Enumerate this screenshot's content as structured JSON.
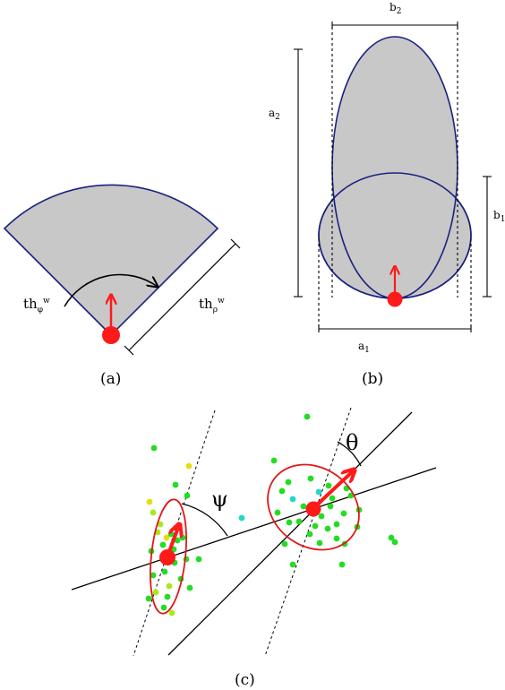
{
  "captions": {
    "a": "(a)",
    "b": "(b)",
    "c": "(c)"
  },
  "panel_a": {
    "angle_label": {
      "base": "th",
      "sub": "φ",
      "sup": "w"
    },
    "range_label": {
      "base": "th",
      "sub": "ρ",
      "sup": "w"
    }
  },
  "panel_b": {
    "b2": {
      "base": "b",
      "sub": "2"
    },
    "a2": {
      "base": "a",
      "sub": "2"
    },
    "b1": {
      "base": "b",
      "sub": "1"
    },
    "a1": {
      "base": "a",
      "sub": "1"
    }
  },
  "panel_c": {
    "psi_label": "ψ",
    "theta_label": "θ"
  },
  "colors": {
    "fill_gray": "#c8c8c8",
    "outline_blue": "#1a237e",
    "marker_red": "#ff1a1a",
    "ellipse_red": "#e01818",
    "point_green": "#22dd22",
    "point_lime": "#a6ea1c",
    "point_yellow": "#e6dc14",
    "point_cyan": "#20d8c8"
  }
}
